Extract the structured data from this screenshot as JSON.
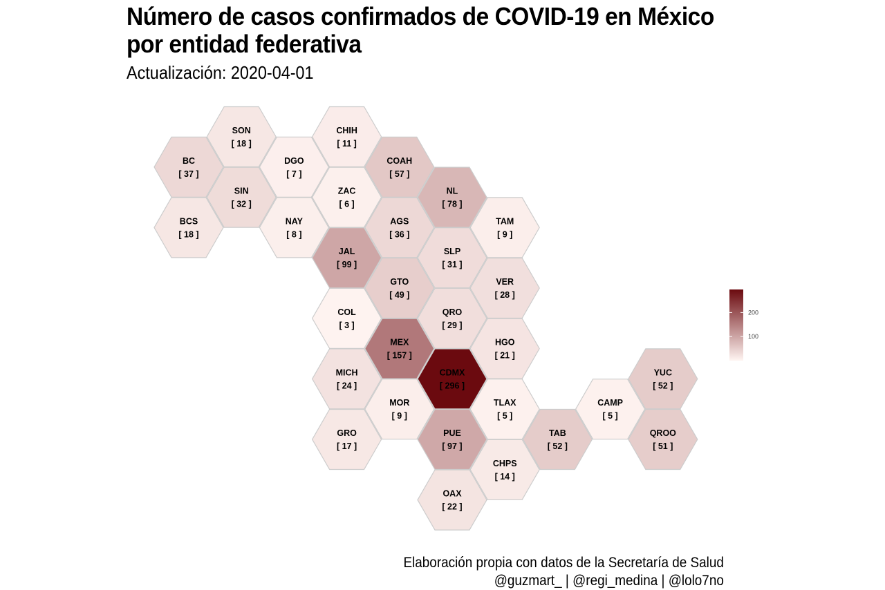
{
  "title_line1": "Número de casos confirmados de COVID-19 en México",
  "title_line2": "por entidad federativa",
  "subtitle": "Actualización: 2020-04-01",
  "caption_line1": "Elaboración propia con datos de la Secretaría de Salud",
  "caption_line2": "@guzmart_ | @regi_medina | @lolo7no",
  "colors": {
    "low": "#fff5f2",
    "high": "#6b0a0f",
    "stroke": "#cccccc"
  },
  "chart_data": {
    "type": "hexbin-map",
    "value_range": [
      0,
      296
    ],
    "legend": {
      "placement": "right",
      "ticks": [
        100,
        200
      ]
    },
    "states": [
      {
        "abbr": "SON",
        "label": "[ 18 ]",
        "value": 18,
        "grid": [
          1,
          0
        ]
      },
      {
        "abbr": "CHIH",
        "label": "[ 11 ]",
        "value": 11,
        "grid": [
          3,
          0
        ]
      },
      {
        "abbr": "BC",
        "label": "[ 37 ]",
        "value": 37,
        "grid": [
          0,
          1
        ]
      },
      {
        "abbr": "DGO",
        "label": "[ 7 ]",
        "value": 7,
        "grid": [
          2,
          1
        ]
      },
      {
        "abbr": "COAH",
        "label": "[ 57 ]",
        "value": 57,
        "grid": [
          4,
          1
        ]
      },
      {
        "abbr": "SIN",
        "label": "[ 32 ]",
        "value": 32,
        "grid": [
          1,
          2
        ]
      },
      {
        "abbr": "ZAC",
        "label": "[ 6 ]",
        "value": 6,
        "grid": [
          3,
          2
        ]
      },
      {
        "abbr": "NL",
        "label": "[ 78 ]",
        "value": 78,
        "grid": [
          5,
          2
        ]
      },
      {
        "abbr": "BCS",
        "label": "[ 18 ]",
        "value": 18,
        "grid": [
          0,
          3
        ]
      },
      {
        "abbr": "NAY",
        "label": "[ 8 ]",
        "value": 8,
        "grid": [
          2,
          3
        ]
      },
      {
        "abbr": "AGS",
        "label": "[ 36 ]",
        "value": 36,
        "grid": [
          4,
          3
        ]
      },
      {
        "abbr": "TAM",
        "label": "[ 9 ]",
        "value": 9,
        "grid": [
          6,
          3
        ]
      },
      {
        "abbr": "JAL",
        "label": "[ 99 ]",
        "value": 99,
        "grid": [
          3,
          4
        ]
      },
      {
        "abbr": "SLP",
        "label": "[ 31 ]",
        "value": 31,
        "grid": [
          5,
          4
        ]
      },
      {
        "abbr": "GTO",
        "label": "[ 49 ]",
        "value": 49,
        "grid": [
          4,
          5
        ]
      },
      {
        "abbr": "VER",
        "label": "[ 28 ]",
        "value": 28,
        "grid": [
          6,
          5
        ]
      },
      {
        "abbr": "COL",
        "label": "[ 3 ]",
        "value": 3,
        "grid": [
          3,
          6
        ]
      },
      {
        "abbr": "QRO",
        "label": "[ 29 ]",
        "value": 29,
        "grid": [
          5,
          6
        ]
      },
      {
        "abbr": "MEX",
        "label": "[ 157 ]",
        "value": 157,
        "grid": [
          4,
          7
        ]
      },
      {
        "abbr": "HGO",
        "label": "[ 21 ]",
        "value": 21,
        "grid": [
          6,
          7
        ]
      },
      {
        "abbr": "MICH",
        "label": "[ 24 ]",
        "value": 24,
        "grid": [
          3,
          8
        ]
      },
      {
        "abbr": "CDMX",
        "label": "[ 296 ]",
        "value": 296,
        "grid": [
          5,
          8
        ]
      },
      {
        "abbr": "YUC",
        "label": "[ 52 ]",
        "value": 52,
        "grid": [
          9,
          8
        ]
      },
      {
        "abbr": "MOR",
        "label": "[ 9 ]",
        "value": 9,
        "grid": [
          4,
          9
        ]
      },
      {
        "abbr": "TLAX",
        "label": "[ 5 ]",
        "value": 5,
        "grid": [
          6,
          9
        ]
      },
      {
        "abbr": "CAMP",
        "label": "[ 5 ]",
        "value": 5,
        "grid": [
          8,
          9
        ]
      },
      {
        "abbr": "GRO",
        "label": "[ 17 ]",
        "value": 17,
        "grid": [
          3,
          10
        ]
      },
      {
        "abbr": "PUE",
        "label": "[ 97 ]",
        "value": 97,
        "grid": [
          5,
          10
        ]
      },
      {
        "abbr": "TAB",
        "label": "[ 52 ]",
        "value": 52,
        "grid": [
          7,
          10
        ]
      },
      {
        "abbr": "QROO",
        "label": "[ 51 ]",
        "value": 51,
        "grid": [
          9,
          10
        ]
      },
      {
        "abbr": "CHPS",
        "label": "[ 14 ]",
        "value": 14,
        "grid": [
          6,
          11
        ]
      },
      {
        "abbr": "OAX",
        "label": "[ 22 ]",
        "value": 22,
        "grid": [
          5,
          12
        ]
      }
    ]
  }
}
